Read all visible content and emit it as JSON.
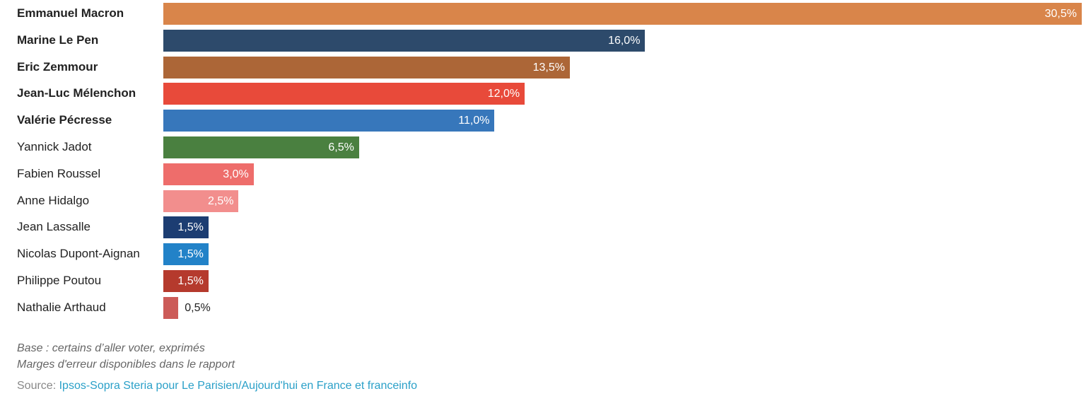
{
  "chart_data": {
    "type": "bar",
    "orientation": "horizontal",
    "unit": "%",
    "categories": [
      "Emmanuel Macron",
      "Marine Le Pen",
      "Eric Zemmour",
      "Jean-Luc Mélenchon",
      "Valérie Pécresse",
      "Yannick Jadot",
      "Fabien Roussel",
      "Anne Hidalgo",
      "Jean Lassalle",
      "Nicolas Dupont-Aignan",
      "Philippe Poutou",
      "Nathalie Arthaud"
    ],
    "values": [
      30.5,
      16.0,
      13.5,
      12.0,
      11.0,
      6.5,
      3.0,
      2.5,
      1.5,
      1.5,
      1.5,
      0.5
    ],
    "value_labels": [
      "30,5%",
      "16,0%",
      "13,5%",
      "12,0%",
      "11,0%",
      "6,5%",
      "3,0%",
      "2,5%",
      "1,5%",
      "1,5%",
      "1,5%",
      "0,5%"
    ],
    "bold": [
      true,
      true,
      true,
      true,
      true,
      false,
      false,
      false,
      false,
      false,
      false,
      false
    ],
    "colors": [
      "#D9854A",
      "#2D4A6B",
      "#AC6637",
      "#E84A3A",
      "#3777BB",
      "#4A8040",
      "#EE6D6B",
      "#F28E8D",
      "#1C3D72",
      "#2282C8",
      "#B53A2D",
      "#CC5B58"
    ],
    "xlim": [
      0,
      30.5
    ],
    "grid": false
  },
  "notes": {
    "base": "Base : certains d’aller voter, exprimés",
    "margins": "Marges d'erreur disponibles dans le rapport",
    "source_label": "Source: ",
    "source_link": "Ipsos-Sopra Steria pour Le Parisien/Aujourd'hui en France et franceinfo"
  }
}
